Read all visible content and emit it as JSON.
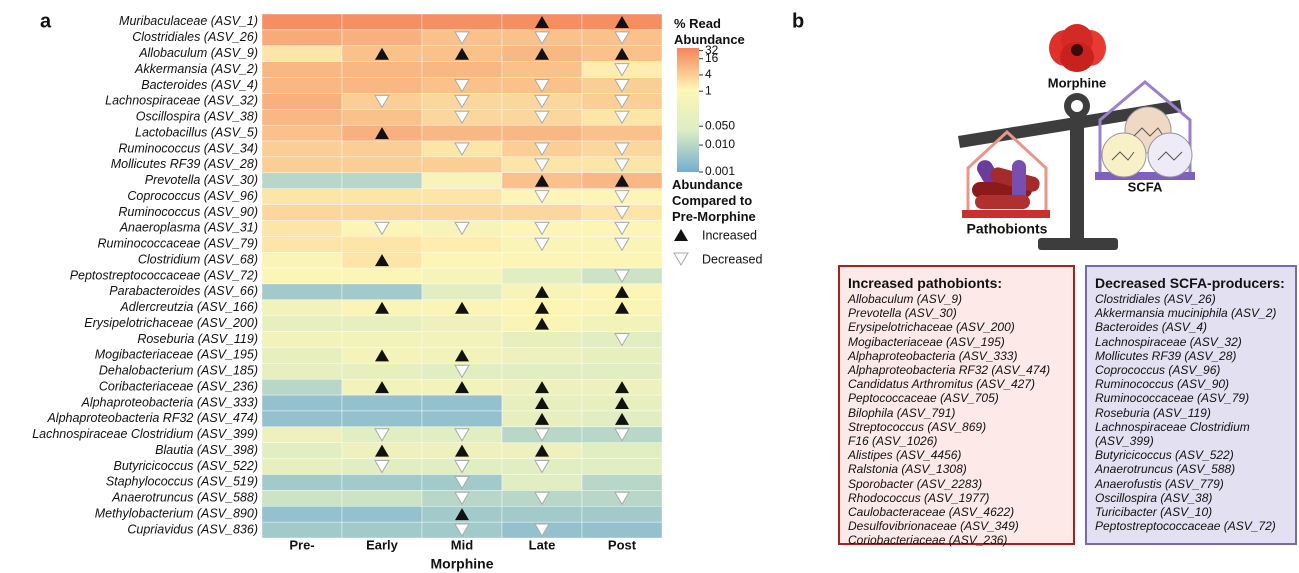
{
  "chart_data": {
    "type": "heatmap",
    "panel_label": "a",
    "colorbar_title": "% Read Abundance",
    "x_label": "Morphine",
    "columns": [
      "Pre-",
      "Early",
      "Mid",
      "Late",
      "Post"
    ],
    "rows": [
      "Muribaculaceae (ASV_1)",
      "Clostridiales (ASV_26)",
      "Allobaculum (ASV_9)",
      "Akkermansia (ASV_2)",
      "Bacteroides (ASV_4)",
      "Lachnospiraceae (ASV_32)",
      "Oscillospira (ASV_38)",
      "Lactobacillus (ASV_5)",
      "Ruminococcus (ASV_34)",
      "Mollicutes RF39 (ASV_28)",
      "Prevotella (ASV_30)",
      "Coprococcus (ASV_96)",
      "Ruminococcus (ASV_90)",
      "Anaeroplasma (ASV_31)",
      "Ruminococcaceae (ASV_79)",
      "Clostridium (ASV_68)",
      "Peptostreptococcaceae (ASV_72)",
      "Parabacteroides (ASV_66)",
      "Adlercreutzia (ASV_166)",
      "Erysipelotrichaceae (ASV_200)",
      "Roseburia (ASV_119)",
      "Mogibacteriaceae (ASV_195)",
      "Dehalobacterium (ASV_185)",
      "Coribacteriaceae (ASV_236)",
      "Alphaproteobacteria (ASV_333)",
      "Alphaproteobacteria RF32 (ASV_474)",
      "Lachnospiraceae Clostridium (ASV_399)",
      "Blautia (ASV_398)",
      "Butyricicoccus (ASV_522)",
      "Staphylococcus (ASV_519)",
      "Anaerotruncus (ASV_588)",
      "Methylobacterium (ASV_890)",
      "Cupriavidus (ASV_836)"
    ],
    "values": [
      [
        30,
        28,
        28,
        30,
        30
      ],
      [
        12,
        10,
        6,
        6,
        6
      ],
      [
        2,
        6,
        6,
        8,
        6
      ],
      [
        8,
        8,
        8,
        6,
        1.5
      ],
      [
        8,
        8,
        6,
        6,
        4
      ],
      [
        10,
        4,
        3,
        3,
        4
      ],
      [
        8,
        6,
        3,
        3,
        2
      ],
      [
        6,
        10,
        8,
        8,
        6
      ],
      [
        4,
        4,
        2,
        4,
        3
      ],
      [
        4,
        4,
        4,
        2,
        2
      ],
      [
        0.01,
        0.01,
        0.5,
        6,
        8
      ],
      [
        2,
        2,
        2,
        1,
        1
      ],
      [
        3,
        3,
        3,
        3,
        2
      ],
      [
        2,
        1,
        0.5,
        1,
        1
      ],
      [
        2,
        2,
        1.5,
        0.8,
        0.8
      ],
      [
        0.8,
        2,
        1,
        1,
        1
      ],
      [
        1,
        1,
        0.5,
        0.05,
        0.02
      ],
      [
        0.005,
        0.005,
        0.05,
        0.5,
        1
      ],
      [
        0.3,
        0.8,
        0.8,
        1,
        0.8
      ],
      [
        0.1,
        0.1,
        0.2,
        0.8,
        0.3
      ],
      [
        0.3,
        0.3,
        0.3,
        0.1,
        0.05
      ],
      [
        0.1,
        0.4,
        0.3,
        0.2,
        0.1
      ],
      [
        0.1,
        0.1,
        0.05,
        0.05,
        0.05
      ],
      [
        0.01,
        0.3,
        0.3,
        0.2,
        0.2
      ],
      [
        0.003,
        0.003,
        0.003,
        0.1,
        0.1
      ],
      [
        0.003,
        0.003,
        0.003,
        0.1,
        0.05
      ],
      [
        0.2,
        0.05,
        0.05,
        0.01,
        0.01
      ],
      [
        0.05,
        0.2,
        0.2,
        0.2,
        0.05
      ],
      [
        0.1,
        0.05,
        0.05,
        0.05,
        0.05
      ],
      [
        0.005,
        0.005,
        0.005,
        0.05,
        0.01
      ],
      [
        0.02,
        0.02,
        0.01,
        0.01,
        0.01
      ],
      [
        0.003,
        0.003,
        0.005,
        0.005,
        0.005
      ],
      [
        0.005,
        0.005,
        0.005,
        0.003,
        0.003
      ]
    ],
    "markers": [
      [
        null,
        null,
        null,
        "up",
        "up"
      ],
      [
        null,
        null,
        "down",
        "down",
        "down"
      ],
      [
        null,
        "up",
        "up",
        "up",
        "up"
      ],
      [
        null,
        null,
        null,
        null,
        "down"
      ],
      [
        null,
        null,
        "down",
        "down",
        "down"
      ],
      [
        null,
        "down",
        "down",
        "down",
        "down"
      ],
      [
        null,
        null,
        "down",
        "down",
        "down"
      ],
      [
        null,
        "up",
        null,
        null,
        null
      ],
      [
        null,
        null,
        "down",
        "down",
        "down"
      ],
      [
        null,
        null,
        null,
        "down",
        "down"
      ],
      [
        null,
        null,
        null,
        "up",
        "up"
      ],
      [
        null,
        null,
        null,
        "down",
        "down"
      ],
      [
        null,
        null,
        null,
        null,
        "down"
      ],
      [
        null,
        "down",
        "down",
        "down",
        "down"
      ],
      [
        null,
        null,
        null,
        "down",
        "down"
      ],
      [
        null,
        "up",
        null,
        null,
        null
      ],
      [
        null,
        null,
        null,
        null,
        "down"
      ],
      [
        null,
        null,
        null,
        "up",
        "up"
      ],
      [
        null,
        "up",
        "up",
        "up",
        "up"
      ],
      [
        null,
        null,
        null,
        "up",
        null
      ],
      [
        null,
        null,
        null,
        null,
        "down"
      ],
      [
        null,
        "up",
        "up",
        null,
        null
      ],
      [
        null,
        null,
        "down",
        null,
        null
      ],
      [
        null,
        "up",
        "up",
        "up",
        "up"
      ],
      [
        null,
        null,
        null,
        "up",
        "up"
      ],
      [
        null,
        null,
        null,
        "up",
        "up"
      ],
      [
        null,
        "down",
        "down",
        "down",
        "down"
      ],
      [
        null,
        "up",
        "up",
        "up",
        null
      ],
      [
        null,
        "down",
        "down",
        "down",
        null
      ],
      [
        null,
        null,
        "down",
        null,
        null
      ],
      [
        null,
        null,
        "down",
        "down",
        "down"
      ],
      [
        null,
        null,
        "up",
        null,
        null
      ],
      [
        null,
        null,
        "down",
        "down",
        null
      ]
    ],
    "log_scale": true,
    "clim": [
      0.001,
      40
    ],
    "cticks": [
      32,
      16,
      4,
      1,
      {
        "value": 0.05,
        "label": "0.050"
      },
      {
        "value": 0.01,
        "label": "0.010"
      },
      0.001
    ],
    "colors": [
      "#74add1",
      "#dcedc4",
      "#fff5b5",
      "#f4855a"
    ],
    "marker_legend": {
      "title": "Abundance Compared to Pre-Morphine",
      "increased": "Increased",
      "decreased": "Decreased"
    }
  },
  "panel_b": {
    "label": "b",
    "drug": "Morphine",
    "left_pan": "Pathobionts",
    "right_pan": "SCFA",
    "increased_box": {
      "title": "Increased pathobionts:",
      "items": [
        "Allobaculum (ASV_9)",
        "Prevotella (ASV_30)",
        "Erysipelotrichaceae (ASV_200)",
        "Mogibacteriaceae (ASV_195)",
        "Alphaproteobacteria (ASV_333)",
        "Alphaproteobacteria RF32 (ASV_474)",
        "Candidatus Arthromitus (ASV_427)",
        "Peptococcaceae (ASV_705)",
        "Bilophila (ASV_791)",
        "Streptococcus (ASV_869)",
        "F16 (ASV_1026)",
        "Alistipes (ASV_4456)",
        "Ralstonia (ASV_1308)",
        "Sporobacter (ASV_2283)",
        "Rhodococcus (ASV_1977)",
        "Caulobacteraceae (ASV_4622)",
        "Desulfovibrionaceae (ASV_349)",
        "Coriobacteriaceae (ASV_236)"
      ]
    },
    "decreased_box": {
      "title": "Decreased SCFA-producers:",
      "items": [
        "Clostridiales (ASV_26)",
        "Akkermansia muciniphila (ASV_2)",
        "Bacteroides (ASV_4)",
        "Lachnospiraceae (ASV_32)",
        "Mollicutes RF39 (ASV_28)",
        "Coprococcus (ASV_96)",
        "Ruminococcus (ASV_90)",
        "Ruminococcaceae (ASV_79)",
        "Roseburia (ASV_119)",
        "Lachnospiraceae Clostridium (ASV_399)",
        "Butyricicoccus (ASV_522)",
        "Anaerotruncus (ASV_588)",
        "Anaerofustis (ASV_779)",
        "Oscillospira (ASV_38)",
        "Turicibacter (ASV_10)",
        "Peptostreptococcaceae (ASV_72)"
      ]
    }
  }
}
